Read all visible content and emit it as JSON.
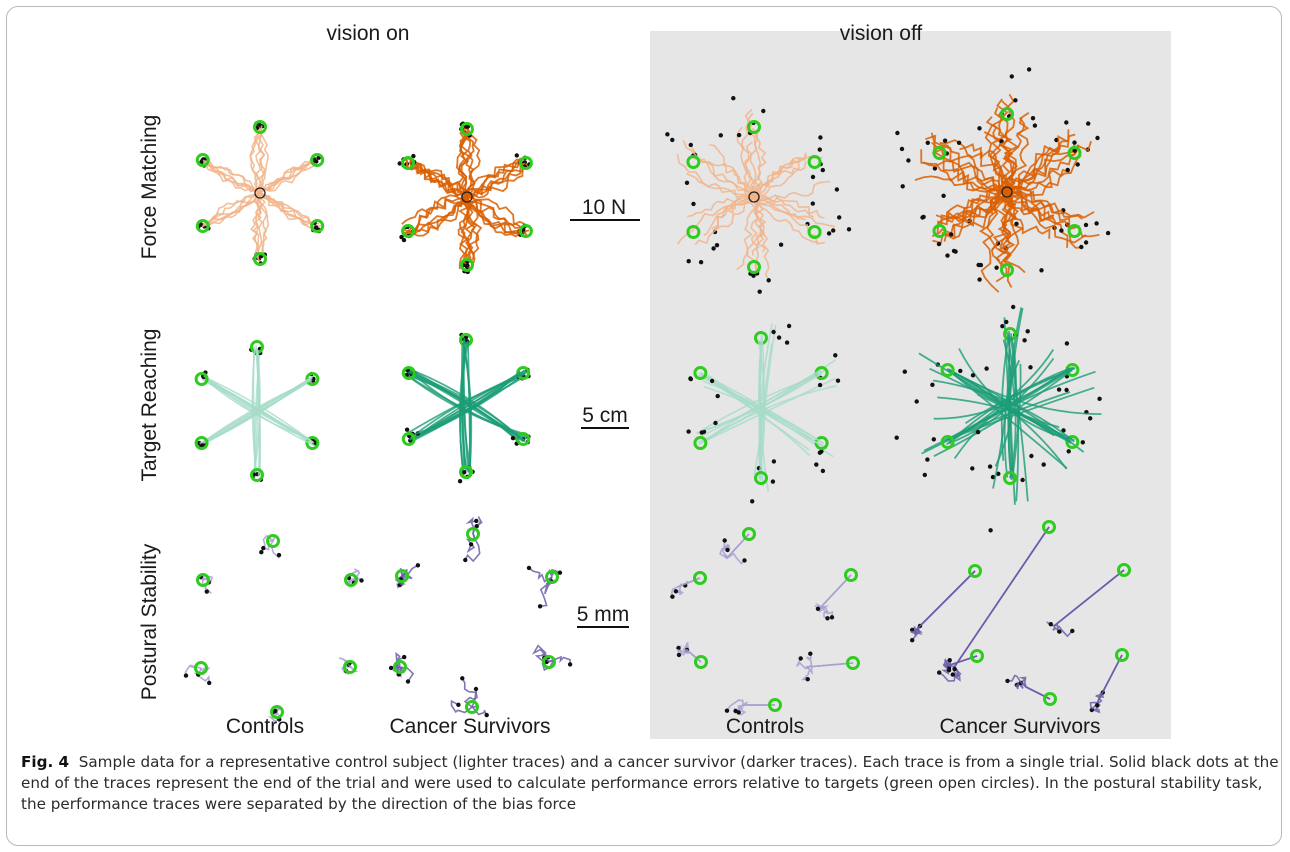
{
  "figure": {
    "conditions": [
      "vision on",
      "vision off"
    ],
    "rows": [
      "Force Matching",
      "Target Reaching",
      "Postural Stability"
    ],
    "columns": [
      "Controls",
      "Cancer Survivors",
      "Controls",
      "Cancer Survivors"
    ],
    "scale_bars": [
      "10 N",
      "5 cm",
      "5 mm"
    ]
  },
  "caption": {
    "label": "Fig. 4",
    "text": "Sample data for a representative control subject (lighter traces) and a cancer survivor (darker traces). Each trace is from a single trial. Solid black dots at the end of the traces represent the end of the trial and were used to calculate performance errors relative to targets (green open circles). In the postural stability task, the performance traces were separated by the direction of the bias force"
  },
  "colors": {
    "force_control": "#f2b48a",
    "force_survivor": "#d95f02",
    "reach_control": "#a6dcc8",
    "reach_survivor": "#1b9e77",
    "posture_control": "#a99fd0",
    "posture_survivor": "#6a5fa8",
    "target_circle": "#2ecc1f",
    "end_dot": "#111111",
    "vision_off_background": "#e6e6e6"
  }
}
